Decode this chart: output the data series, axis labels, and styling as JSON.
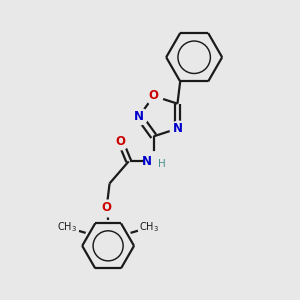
{
  "bg_color": "#e8e8e8",
  "line_color": "#1a1a1a",
  "N_color": "#0000cc",
  "O_color": "#cc0000",
  "H_color": "#4a9090",
  "line_width": 1.6,
  "fig_size": [
    3.0,
    3.0
  ],
  "dpi": 100,
  "xlim": [
    0,
    10
  ],
  "ylim": [
    0,
    10
  ]
}
